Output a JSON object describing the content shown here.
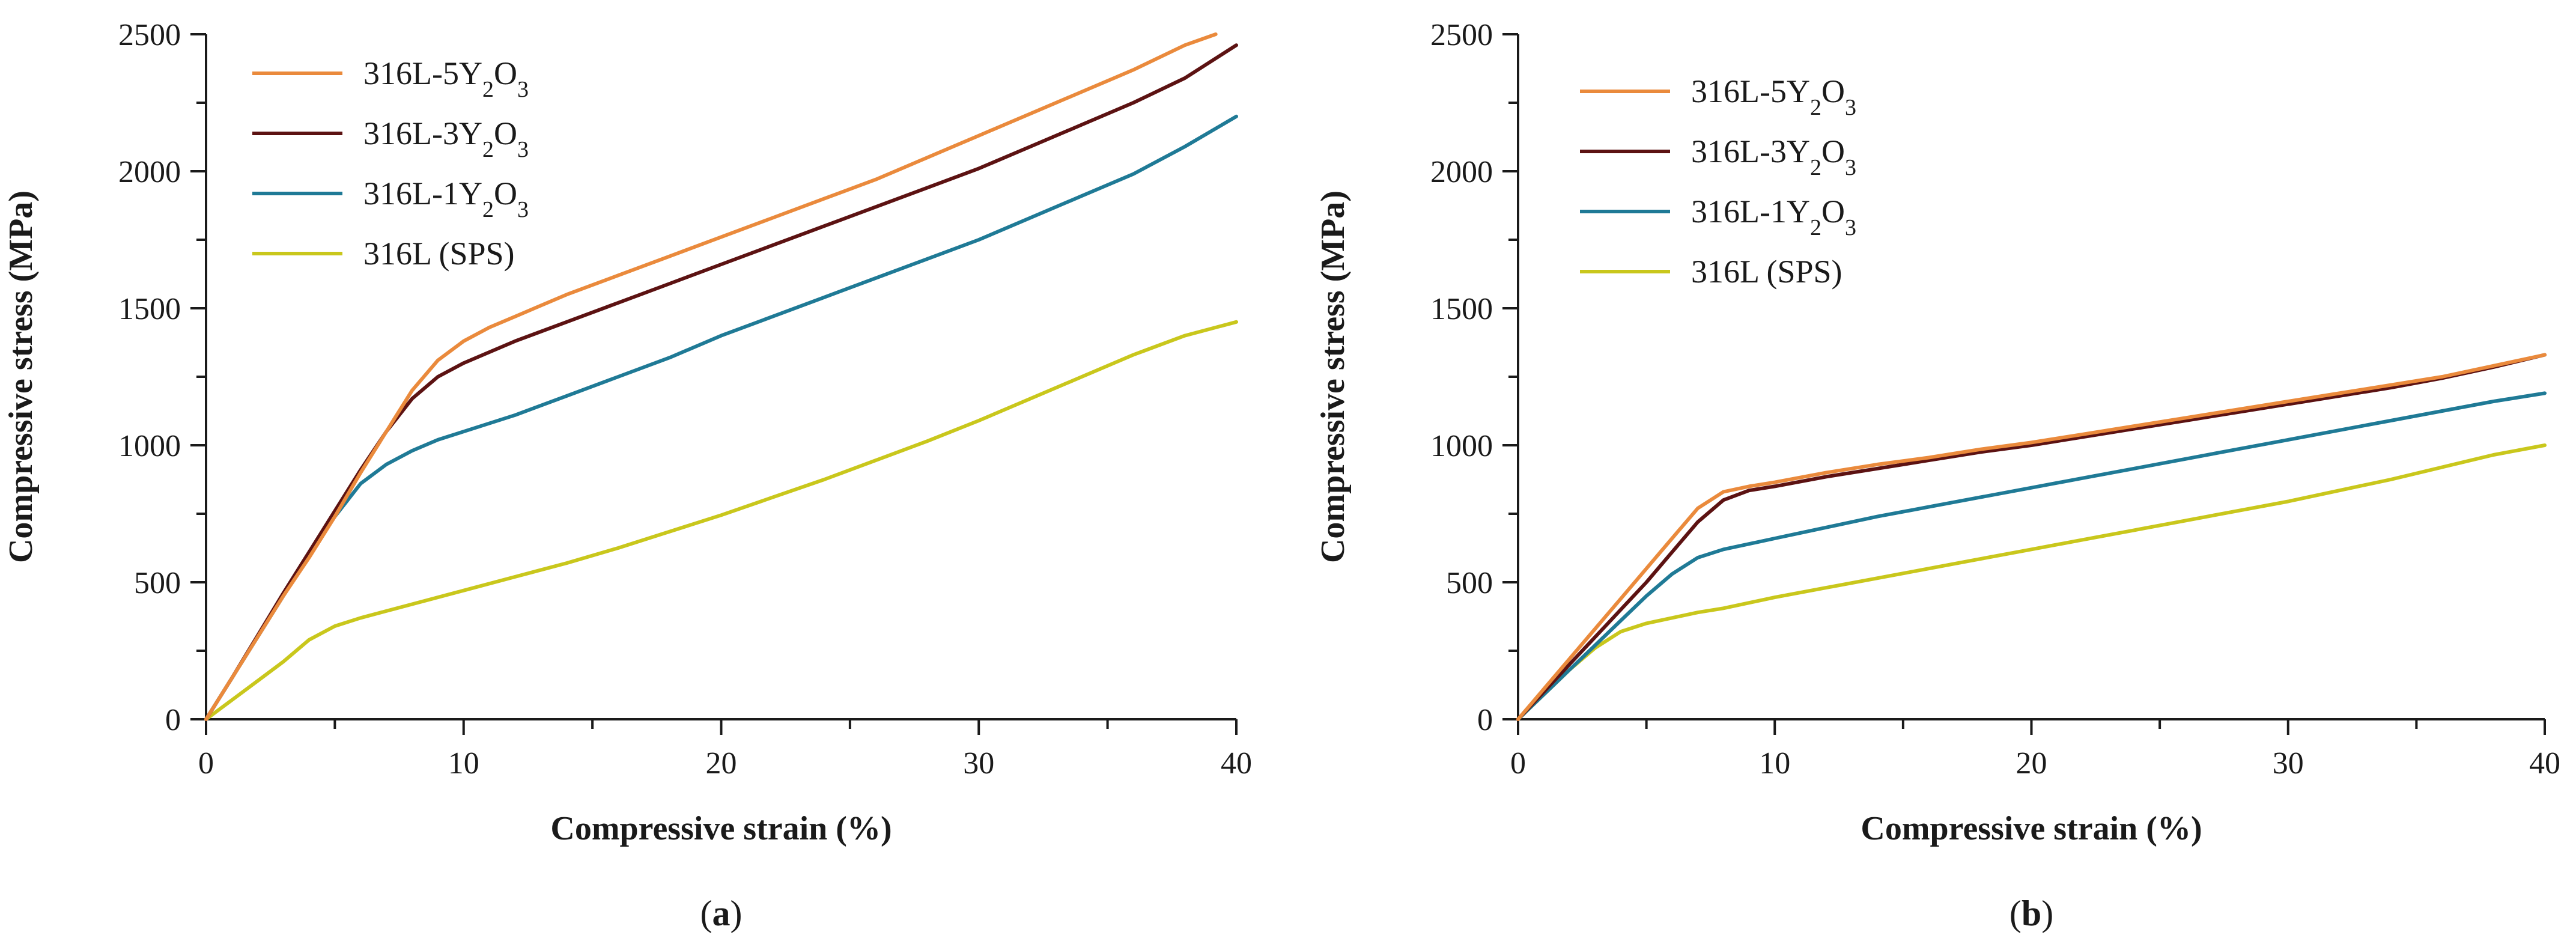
{
  "chart_data": [
    {
      "type": "line",
      "panel_label": "a",
      "xlabel": "Compressive strain (%)",
      "ylabel": "Compressive stress (MPa)",
      "xlim": [
        0,
        40
      ],
      "ylim": [
        0,
        2500
      ],
      "xticks": [
        0,
        10,
        20,
        30,
        40
      ],
      "yticks": [
        0,
        500,
        1000,
        1500,
        2000,
        2500
      ],
      "legend_position": "top-left",
      "series": [
        {
          "name": "316L-5Y₂O₃",
          "color": "#ea8a3c",
          "x": [
            0,
            1,
            2,
            3,
            4,
            5,
            6,
            7,
            8,
            9,
            10,
            11,
            12,
            14,
            16,
            18,
            20,
            22,
            24,
            26,
            28,
            30,
            32,
            34,
            36,
            38,
            39.2
          ],
          "y": [
            0,
            150,
            300,
            450,
            590,
            740,
            900,
            1050,
            1200,
            1310,
            1380,
            1430,
            1470,
            1550,
            1620,
            1690,
            1760,
            1830,
            1900,
            1970,
            2050,
            2130,
            2210,
            2290,
            2370,
            2460,
            2500
          ]
        },
        {
          "name": "316L-3Y₂O₃",
          "color": "#5c1212",
          "x": [
            0,
            1,
            2,
            3,
            4,
            5,
            6,
            7,
            8,
            9,
            10,
            11,
            12,
            14,
            16,
            18,
            20,
            22,
            24,
            26,
            28,
            30,
            32,
            34,
            36,
            38,
            40
          ],
          "y": [
            0,
            150,
            305,
            460,
            610,
            760,
            910,
            1050,
            1170,
            1250,
            1300,
            1340,
            1380,
            1450,
            1520,
            1590,
            1660,
            1730,
            1800,
            1870,
            1940,
            2010,
            2090,
            2170,
            2250,
            2340,
            2460
          ]
        },
        {
          "name": "316L-1Y₂O₃",
          "color": "#1f7a96",
          "x": [
            0,
            1,
            2,
            3,
            4,
            5,
            6,
            7,
            8,
            9,
            10,
            12,
            14,
            16,
            18,
            20,
            22,
            24,
            26,
            28,
            30,
            32,
            34,
            36,
            38,
            40
          ],
          "y": [
            0,
            150,
            300,
            450,
            600,
            740,
            860,
            930,
            980,
            1020,
            1050,
            1110,
            1180,
            1250,
            1320,
            1400,
            1470,
            1540,
            1610,
            1680,
            1750,
            1830,
            1910,
            1990,
            2090,
            2200
          ]
        },
        {
          "name": "316L (SPS)",
          "color": "#c9c71c",
          "x": [
            0,
            1,
            2,
            3,
            4,
            5,
            6,
            7,
            8,
            10,
            12,
            14,
            16,
            18,
            20,
            22,
            24,
            26,
            28,
            30,
            32,
            34,
            36,
            38,
            40
          ],
          "y": [
            0,
            70,
            140,
            210,
            290,
            340,
            370,
            395,
            420,
            470,
            520,
            570,
            625,
            685,
            745,
            810,
            875,
            945,
            1015,
            1090,
            1170,
            1250,
            1330,
            1400,
            1450
          ]
        }
      ]
    },
    {
      "type": "line",
      "panel_label": "b",
      "xlabel": "Compressive strain (%)",
      "ylabel": "Compressive stress (MPa)",
      "xlim": [
        0,
        40
      ],
      "ylim": [
        0,
        2500
      ],
      "xticks": [
        0,
        10,
        20,
        30,
        40
      ],
      "yticks": [
        0,
        500,
        1000,
        1500,
        2000,
        2500
      ],
      "legend_position": "top-left",
      "series": [
        {
          "name": "316L-5Y₂O₃",
          "color": "#ea8a3c",
          "x": [
            0,
            1,
            2,
            3,
            4,
            5,
            6,
            7,
            8,
            9,
            10,
            12,
            14,
            16,
            18,
            20,
            22,
            24,
            26,
            28,
            30,
            32,
            34,
            36,
            38,
            40
          ],
          "y": [
            0,
            110,
            220,
            330,
            440,
            550,
            660,
            770,
            830,
            850,
            865,
            900,
            930,
            955,
            985,
            1010,
            1040,
            1070,
            1100,
            1130,
            1160,
            1190,
            1220,
            1250,
            1290,
            1330
          ]
        },
        {
          "name": "316L-3Y₂O₃",
          "color": "#5c1212",
          "x": [
            0,
            1,
            2,
            3,
            4,
            5,
            6,
            7,
            8,
            9,
            10,
            12,
            14,
            16,
            18,
            20,
            22,
            24,
            26,
            28,
            30,
            32,
            34,
            36,
            38,
            40
          ],
          "y": [
            0,
            100,
            200,
            300,
            400,
            500,
            610,
            720,
            800,
            835,
            850,
            885,
            915,
            945,
            975,
            1000,
            1030,
            1060,
            1090,
            1120,
            1150,
            1180,
            1210,
            1245,
            1285,
            1330
          ]
        },
        {
          "name": "316L-1Y₂O₃",
          "color": "#1f7a96",
          "x": [
            0,
            1,
            2,
            3,
            4,
            5,
            6,
            7,
            8,
            9,
            10,
            12,
            14,
            16,
            18,
            20,
            22,
            24,
            26,
            28,
            30,
            32,
            34,
            36,
            38,
            40
          ],
          "y": [
            0,
            90,
            180,
            270,
            360,
            450,
            530,
            590,
            620,
            640,
            660,
            700,
            740,
            775,
            810,
            845,
            880,
            915,
            950,
            985,
            1020,
            1055,
            1090,
            1125,
            1160,
            1190
          ]
        },
        {
          "name": "316L (SPS)",
          "color": "#c9c71c",
          "x": [
            0,
            1,
            2,
            3,
            4,
            5,
            6,
            7,
            8,
            10,
            12,
            14,
            16,
            18,
            20,
            22,
            24,
            26,
            28,
            30,
            32,
            34,
            36,
            38,
            40
          ],
          "y": [
            0,
            90,
            180,
            260,
            320,
            350,
            370,
            390,
            405,
            445,
            480,
            515,
            550,
            585,
            620,
            655,
            690,
            725,
            760,
            795,
            835,
            875,
            920,
            965,
            1000
          ]
        }
      ]
    }
  ]
}
